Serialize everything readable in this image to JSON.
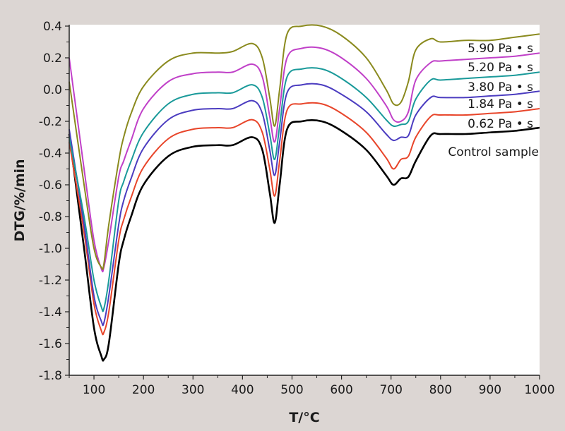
{
  "chart_data": {
    "type": "line",
    "xlabel": "T/°C",
    "ylabel": "DTG/%/min",
    "xlim": [
      50,
      1000
    ],
    "ylim": [
      -1.8,
      0.4
    ],
    "xticks": [
      "100",
      "200",
      "300",
      "400",
      "500",
      "600",
      "700",
      "800",
      "900",
      "1000"
    ],
    "yticks": [
      "0.4",
      "0.2",
      "0.0",
      "-0.2",
      "-0.4",
      "-0.6",
      "-0.8",
      "-1.0",
      "-1.2",
      "-1.4",
      "-1.6",
      "-1.8"
    ],
    "grid": false,
    "legend": "inline labels at right end of curves",
    "x": [
      50,
      80,
      100,
      115,
      120,
      130,
      150,
      160,
      175,
      200,
      250,
      300,
      350,
      380,
      420,
      440,
      455,
      465,
      475,
      490,
      520,
      560,
      600,
      650,
      690,
      705,
      720,
      735,
      750,
      780,
      800,
      850,
      900,
      950,
      1000
    ],
    "series": [
      {
        "name": "Control sample",
        "color": "#000000",
        "values": [
          -0.28,
          -1.0,
          -1.5,
          -1.68,
          -1.7,
          -1.6,
          -1.1,
          -0.95,
          -0.8,
          -0.6,
          -0.42,
          -0.36,
          -0.35,
          -0.35,
          -0.3,
          -0.38,
          -0.65,
          -0.84,
          -0.6,
          -0.25,
          -0.2,
          -0.2,
          -0.26,
          -0.38,
          -0.54,
          -0.6,
          -0.56,
          -0.55,
          -0.45,
          -0.29,
          -0.28,
          -0.28,
          -0.27,
          -0.26,
          -0.24
        ]
      },
      {
        "name": "0.62 Pa • s",
        "color": "#e8452a",
        "values": [
          -0.33,
          -0.9,
          -1.35,
          -1.52,
          -1.53,
          -1.4,
          -0.95,
          -0.82,
          -0.68,
          -0.49,
          -0.31,
          -0.25,
          -0.24,
          -0.24,
          -0.19,
          -0.27,
          -0.5,
          -0.67,
          -0.45,
          -0.13,
          -0.09,
          -0.09,
          -0.15,
          -0.27,
          -0.43,
          -0.5,
          -0.44,
          -0.42,
          -0.3,
          -0.17,
          -0.16,
          -0.16,
          -0.15,
          -0.14,
          -0.12
        ]
      },
      {
        "name": "1.84 Pa • s",
        "color": "#4b3cc0",
        "values": [
          -0.25,
          -0.85,
          -1.3,
          -1.46,
          -1.47,
          -1.3,
          -0.85,
          -0.7,
          -0.56,
          -0.37,
          -0.19,
          -0.13,
          -0.12,
          -0.12,
          -0.07,
          -0.15,
          -0.38,
          -0.54,
          -0.33,
          -0.02,
          0.03,
          0.03,
          -0.03,
          -0.14,
          -0.28,
          -0.32,
          -0.3,
          -0.29,
          -0.16,
          -0.05,
          -0.05,
          -0.05,
          -0.04,
          -0.03,
          -0.01
        ]
      },
      {
        "name": "3.80 Pa • s",
        "color": "#1a9a9a",
        "values": [
          -0.3,
          -0.8,
          -1.2,
          -1.37,
          -1.38,
          -1.2,
          -0.7,
          -0.58,
          -0.45,
          -0.27,
          -0.09,
          -0.03,
          -0.02,
          -0.02,
          0.03,
          -0.05,
          -0.28,
          -0.44,
          -0.23,
          0.08,
          0.13,
          0.13,
          0.07,
          -0.05,
          -0.19,
          -0.23,
          -0.22,
          -0.2,
          -0.06,
          0.06,
          0.06,
          0.07,
          0.08,
          0.09,
          0.11
        ]
      },
      {
        "name": "5.20 Pa • s",
        "color": "#c040c8",
        "values": [
          0.2,
          -0.5,
          -0.95,
          -1.13,
          -1.12,
          -0.95,
          -0.55,
          -0.45,
          -0.32,
          -0.12,
          0.05,
          0.1,
          0.11,
          0.11,
          0.16,
          0.08,
          -0.17,
          -0.33,
          -0.12,
          0.2,
          0.26,
          0.26,
          0.2,
          0.07,
          -0.1,
          -0.19,
          -0.2,
          -0.14,
          0.06,
          0.17,
          0.18,
          0.19,
          0.2,
          0.21,
          0.23
        ]
      },
      {
        "name": "5.90 Pa • s",
        "color": "#8a8a1e",
        "values": [
          0.05,
          -0.6,
          -1.0,
          -1.12,
          -1.1,
          -0.85,
          -0.45,
          -0.3,
          -0.15,
          0.02,
          0.18,
          0.23,
          0.23,
          0.24,
          0.29,
          0.2,
          -0.05,
          -0.23,
          0.0,
          0.35,
          0.4,
          0.4,
          0.34,
          0.2,
          0.0,
          -0.09,
          -0.08,
          0.05,
          0.25,
          0.32,
          0.3,
          0.31,
          0.31,
          0.33,
          0.35
        ]
      }
    ]
  }
}
